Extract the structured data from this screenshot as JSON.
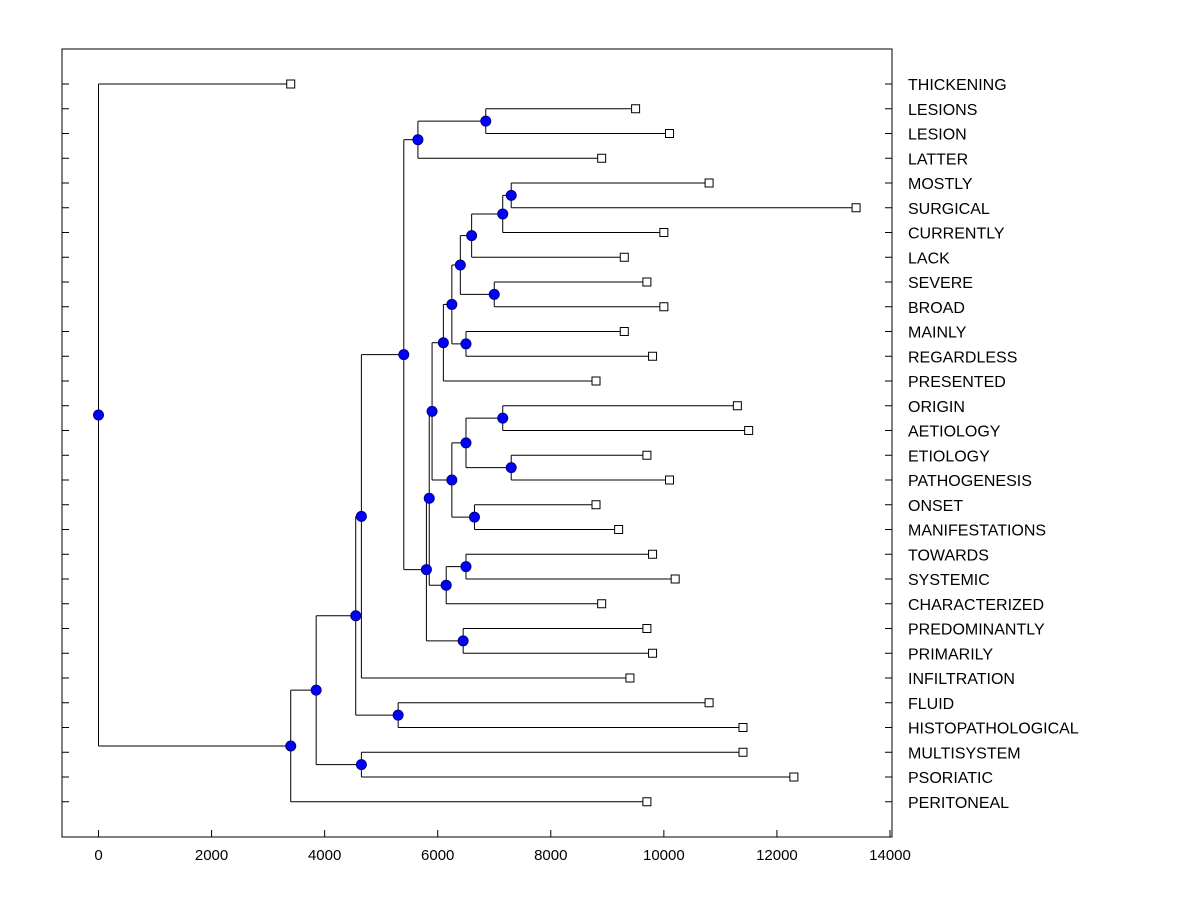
{
  "chart_data": {
    "type": "dendrogram",
    "title": "",
    "xlabel": "",
    "ylabel": "",
    "xlim": [
      -650,
      14000
    ],
    "x_ticks": [
      "0",
      "2000",
      "4000",
      "6000",
      "8000",
      "10000",
      "12000",
      "14000"
    ],
    "x_tick_values": [
      0,
      2000,
      4000,
      6000,
      8000,
      10000,
      12000,
      14000
    ],
    "grid": false,
    "leaves": [
      {
        "label": "THICKENING",
        "value": 3400
      },
      {
        "label": "LESIONS",
        "value": 9500
      },
      {
        "label": "LESION",
        "value": 10100
      },
      {
        "label": "LATTER",
        "value": 8900
      },
      {
        "label": "MOSTLY",
        "value": 10800
      },
      {
        "label": "SURGICAL",
        "value": 13400
      },
      {
        "label": "CURRENTLY",
        "value": 10000
      },
      {
        "label": "LACK",
        "value": 9300
      },
      {
        "label": "SEVERE",
        "value": 9700
      },
      {
        "label": "BROAD",
        "value": 10000
      },
      {
        "label": "MAINLY",
        "value": 9300
      },
      {
        "label": "REGARDLESS",
        "value": 9800
      },
      {
        "label": "PRESENTED",
        "value": 8800
      },
      {
        "label": "ORIGIN",
        "value": 11300
      },
      {
        "label": "AETIOLOGY",
        "value": 11500
      },
      {
        "label": "ETIOLOGY",
        "value": 9700
      },
      {
        "label": "PATHOGENESIS",
        "value": 10100
      },
      {
        "label": "ONSET",
        "value": 8800
      },
      {
        "label": "MANIFESTATIONS",
        "value": 9200
      },
      {
        "label": "TOWARDS",
        "value": 9800
      },
      {
        "label": "SYSTEMIC",
        "value": 10200
      },
      {
        "label": "CHARACTERIZED",
        "value": 8900
      },
      {
        "label": "PREDOMINANTLY",
        "value": 9700
      },
      {
        "label": "PRIMARILY",
        "value": 9800
      },
      {
        "label": "INFILTRATION",
        "value": 9400
      },
      {
        "label": "FLUID",
        "value": 10800
      },
      {
        "label": "HISTOPATHOLOGICAL",
        "value": 11400
      },
      {
        "label": "MULTISYSTEM",
        "value": 11400
      },
      {
        "label": "PSORIATIC",
        "value": 12300
      },
      {
        "label": "PERITONEAL",
        "value": 9700
      }
    ],
    "merges": [
      {
        "id": "L1",
        "value": 6850,
        "children": [
          1,
          2
        ]
      },
      {
        "id": "L2",
        "value": 5650,
        "children": [
          "L1",
          3
        ]
      },
      {
        "id": "S1",
        "value": 7300,
        "children": [
          4,
          5
        ]
      },
      {
        "id": "S2",
        "value": 7150,
        "children": [
          "S1",
          6
        ]
      },
      {
        "id": "S3",
        "value": 6600,
        "children": [
          "S2",
          7
        ]
      },
      {
        "id": "SB",
        "value": 7000,
        "children": [
          8,
          9
        ]
      },
      {
        "id": "S4",
        "value": 6400,
        "children": [
          "S3",
          "SB"
        ]
      },
      {
        "id": "MR",
        "value": 6500,
        "children": [
          10,
          11
        ]
      },
      {
        "id": "S5",
        "value": 6250,
        "children": [
          "S4",
          "MR"
        ]
      },
      {
        "id": "S6",
        "value": 6100,
        "children": [
          "S5",
          12
        ]
      },
      {
        "id": "OA",
        "value": 7150,
        "children": [
          13,
          14
        ]
      },
      {
        "id": "EP",
        "value": 7300,
        "children": [
          15,
          16
        ]
      },
      {
        "id": "O1",
        "value": 6500,
        "children": [
          "OA",
          "EP"
        ]
      },
      {
        "id": "OM",
        "value": 6650,
        "children": [
          17,
          18
        ]
      },
      {
        "id": "O2",
        "value": 6250,
        "children": [
          "O1",
          "OM"
        ]
      },
      {
        "id": "O3",
        "value": 5900,
        "children": [
          "S6",
          "O2"
        ]
      },
      {
        "id": "TS",
        "value": 6500,
        "children": [
          19,
          20
        ]
      },
      {
        "id": "TC",
        "value": 6150,
        "children": [
          "TS",
          21
        ]
      },
      {
        "id": "T2",
        "value": 5850,
        "children": [
          "O3",
          "TC"
        ]
      },
      {
        "id": "PP",
        "value": 6450,
        "children": [
          22,
          23
        ]
      },
      {
        "id": "T3",
        "value": 5800,
        "children": [
          "T2",
          "PP"
        ]
      },
      {
        "id": "R1",
        "value": 5400,
        "children": [
          "L2",
          "T3"
        ]
      },
      {
        "id": "R2",
        "value": 4650,
        "children": [
          "R1",
          24
        ]
      },
      {
        "id": "FH",
        "value": 5300,
        "children": [
          25,
          26
        ]
      },
      {
        "id": "R3",
        "value": 4550,
        "children": [
          "R2",
          "FH"
        ]
      },
      {
        "id": "MP",
        "value": 4650,
        "children": [
          27,
          28
        ]
      },
      {
        "id": "R4",
        "value": 3850,
        "children": [
          "R3",
          "MP"
        ]
      },
      {
        "id": "R5",
        "value": 3400,
        "children": [
          "R4",
          29
        ]
      },
      {
        "id": "ROOT",
        "value": 0,
        "children": [
          0,
          "R5"
        ]
      }
    ],
    "colors": {
      "node_fill": "#0000ff",
      "node_stroke": "#000080",
      "leaf_fill": "#ffffff",
      "line": "#000000"
    }
  }
}
